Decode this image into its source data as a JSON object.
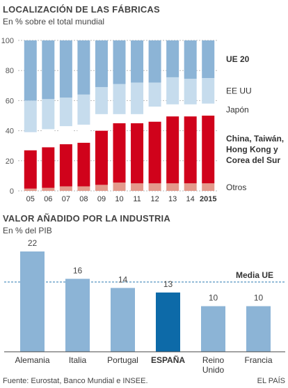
{
  "chart_data": [
    {
      "type": "bar",
      "stacked": true,
      "title": "LOCALIZACIÓN DE LAS FÁBRICAS",
      "subtitle": "En % sobre el total mundial",
      "categories": [
        "05",
        "06",
        "07",
        "08",
        "09",
        "10",
        "11",
        "12",
        "13",
        "14",
        "2015"
      ],
      "bold_categories": [
        "2015"
      ],
      "ylim": [
        0,
        100
      ],
      "yticks": [
        "0",
        "20",
        "40",
        "60",
        "80",
        "100"
      ],
      "grid": true,
      "series": [
        {
          "name": "Otros",
          "color": "#e39a8c",
          "values": [
            1.5,
            2,
            3,
            3,
            4,
            5.5,
            5,
            5,
            5,
            5,
            5
          ]
        },
        {
          "name": "China, Taiwán, Hong Kong y Corea del Sur",
          "color": "#d0021b",
          "values": [
            25.5,
            27,
            28,
            29,
            36,
            39.5,
            40,
            41,
            44.5,
            44.5,
            45
          ]
        },
        {
          "name": "Japón",
          "color": "#ffffff",
          "values": [
            12,
            12,
            12,
            12,
            11,
            6,
            6,
            10,
            8,
            8,
            8
          ]
        },
        {
          "name": "EE UU",
          "color": "#c6dced",
          "values": [
            21,
            20,
            19,
            20,
            18,
            20,
            21,
            16,
            18,
            17,
            17
          ]
        },
        {
          "name": "UE 20",
          "color": "#8cb4d6",
          "values": [
            40,
            39,
            38,
            36,
            31,
            29,
            28,
            28,
            24.5,
            25.5,
            25
          ]
        }
      ],
      "series_labels": [
        {
          "lines": [
            "UE 20"
          ],
          "bold": true
        },
        {
          "lines": [
            "EE UU"
          ],
          "bold": false
        },
        {
          "lines": [
            "Japón"
          ],
          "bold": false
        },
        {
          "lines": [
            "China, Taiwán,",
            "Hong Kong y",
            "Corea del Sur"
          ],
          "bold": true
        },
        {
          "lines": [
            "Otros"
          ],
          "bold": false
        }
      ]
    },
    {
      "type": "bar",
      "title": "VALOR AÑADIDO POR LA INDUSTRIA",
      "subtitle": "En % del PIB",
      "categories": [
        "Alemania",
        "Italia",
        "Portugal",
        "ESPAÑA",
        "Reino\nUnido",
        "Francia"
      ],
      "values": [
        22,
        16,
        14,
        13,
        10,
        10
      ],
      "highlight": "ESPAÑA",
      "bar_color": "#8cb4d6",
      "highlight_color": "#0d6aa8",
      "reference_line": {
        "label": "Media UE",
        "value": 15.3
      }
    }
  ],
  "footer": {
    "source": "Fuente: Eurostat, Banco Mundial e INSEE.",
    "credit": "EL PAÍS"
  }
}
